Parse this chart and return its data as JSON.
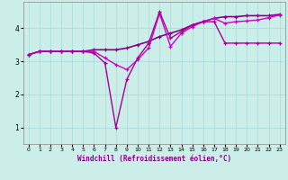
{
  "xlabel": "Windchill (Refroidissement éolien,°C)",
  "background_color": "#cceee8",
  "grid_color": "#aadddd",
  "x_ticks": [
    0,
    1,
    2,
    3,
    4,
    5,
    6,
    7,
    8,
    9,
    10,
    11,
    12,
    13,
    14,
    15,
    16,
    17,
    18,
    19,
    20,
    21,
    22,
    23
  ],
  "y_ticks": [
    1,
    2,
    3,
    4
  ],
  "xlim": [
    -0.5,
    23.5
  ],
  "ylim": [
    0.5,
    4.8
  ],
  "series": [
    {
      "y": [
        3.2,
        3.3,
        3.3,
        3.3,
        3.3,
        3.3,
        3.35,
        3.35,
        3.35,
        3.4,
        3.5,
        3.6,
        3.75,
        3.85,
        3.95,
        4.1,
        4.2,
        4.3,
        4.35,
        4.35,
        4.38,
        4.38,
        4.38,
        4.42
      ],
      "color": "#880088",
      "lw": 1.2,
      "marker": "+"
    },
    {
      "y": [
        3.2,
        3.3,
        3.3,
        3.3,
        3.3,
        3.3,
        3.3,
        3.1,
        2.9,
        2.75,
        3.05,
        3.4,
        4.45,
        3.45,
        3.85,
        4.05,
        4.2,
        4.3,
        4.15,
        4.2,
        4.22,
        4.25,
        4.32,
        4.4
      ],
      "color": "#cc00cc",
      "lw": 1.0,
      "marker": "+"
    },
    {
      "y": [
        3.2,
        3.3,
        3.3,
        3.3,
        3.3,
        3.3,
        3.25,
        2.95,
        1.0,
        2.45,
        3.1,
        3.55,
        4.5,
        3.7,
        3.9,
        4.1,
        4.2,
        4.2,
        3.55,
        3.55,
        3.55,
        3.55,
        3.55,
        3.55
      ],
      "color": "#aa0099",
      "lw": 1.0,
      "marker": "+"
    }
  ]
}
